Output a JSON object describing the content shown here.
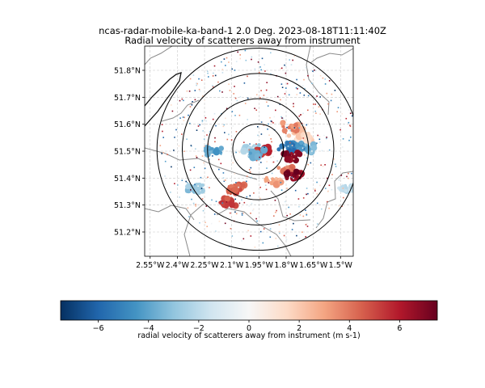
{
  "chart_data": {
    "type": "heatmap",
    "title": "ncas-radar-mobile-ka-band-1 2.0 Deg. 2023-08-18T11:11:40Z",
    "subtitle": "Radial velocity of scatterers away from instrument",
    "x_tick_labels": [
      "2.55°W",
      "2.4°W",
      "2.25°W",
      "2.1°W",
      "1.95°W",
      "1.8°W",
      "1.65°W",
      "1.5°W"
    ],
    "x_ticks": [
      -2.55,
      -2.4,
      -2.25,
      -2.1,
      -1.95,
      -1.8,
      -1.65,
      -1.5
    ],
    "y_tick_labels": [
      "51.8°N",
      "51.7°N",
      "51.6°N",
      "51.5°N",
      "51.4°N",
      "51.3°N",
      "51.2°N"
    ],
    "y_ticks": [
      51.8,
      51.7,
      51.6,
      51.5,
      51.4,
      51.3,
      51.2
    ],
    "xlim": [
      -2.58,
      -1.43
    ],
    "ylim": [
      51.11,
      51.89
    ],
    "grid": true,
    "radar_location": [
      -1.955,
      51.507
    ],
    "range_rings": 4,
    "colorbar": {
      "label": "radial velocity of scatterers away from instrument (m s-1)",
      "range": [
        -7.5,
        7.5
      ],
      "tick_values": [
        -6,
        -4,
        -2,
        0,
        2,
        4,
        6
      ],
      "tick_labels": [
        "−6",
        "−4",
        "−2",
        "0",
        "2",
        "4",
        "6"
      ],
      "colormap": "RdBu_r",
      "colors": [
        "#053061",
        "#2166ac",
        "#4393c3",
        "#92c5de",
        "#d1e5f0",
        "#f7f7f7",
        "#fddbc7",
        "#f4a582",
        "#d6604d",
        "#b2182b",
        "#67001f"
      ]
    },
    "velocity_regions": [
      {
        "lon": -1.74,
        "lat": 51.57,
        "velocity": 2.5
      },
      {
        "lon": -1.78,
        "lat": 51.59,
        "velocity": 3.5
      },
      {
        "lon": -1.7,
        "lat": 51.55,
        "velocity": 1.5
      },
      {
        "lon": -1.69,
        "lat": 51.51,
        "velocity": -3.5
      },
      {
        "lon": -1.75,
        "lat": 51.52,
        "velocity": -4.5
      },
      {
        "lon": -1.8,
        "lat": 51.51,
        "velocity": -5.5
      },
      {
        "lon": -1.77,
        "lat": 51.48,
        "velocity": 7.0
      },
      {
        "lon": -1.8,
        "lat": 51.43,
        "velocity": 4.0
      },
      {
        "lon": -1.76,
        "lat": 51.41,
        "velocity": 7.0
      },
      {
        "lon": -1.99,
        "lat": 51.51,
        "velocity": -2.5
      },
      {
        "lon": -1.93,
        "lat": 51.5,
        "velocity": 5.5
      },
      {
        "lon": -1.96,
        "lat": 51.49,
        "velocity": -4.0
      },
      {
        "lon": -2.2,
        "lat": 51.5,
        "velocity": -4.0
      },
      {
        "lon": -1.87,
        "lat": 51.39,
        "velocity": 3.0
      },
      {
        "lon": -2.07,
        "lat": 51.36,
        "velocity": 4.5
      },
      {
        "lon": -2.3,
        "lat": 51.36,
        "velocity": -3.0
      },
      {
        "lon": -2.12,
        "lat": 51.31,
        "velocity": 5.0
      },
      {
        "lon": -1.47,
        "lat": 51.36,
        "velocity": -2.0
      }
    ]
  }
}
